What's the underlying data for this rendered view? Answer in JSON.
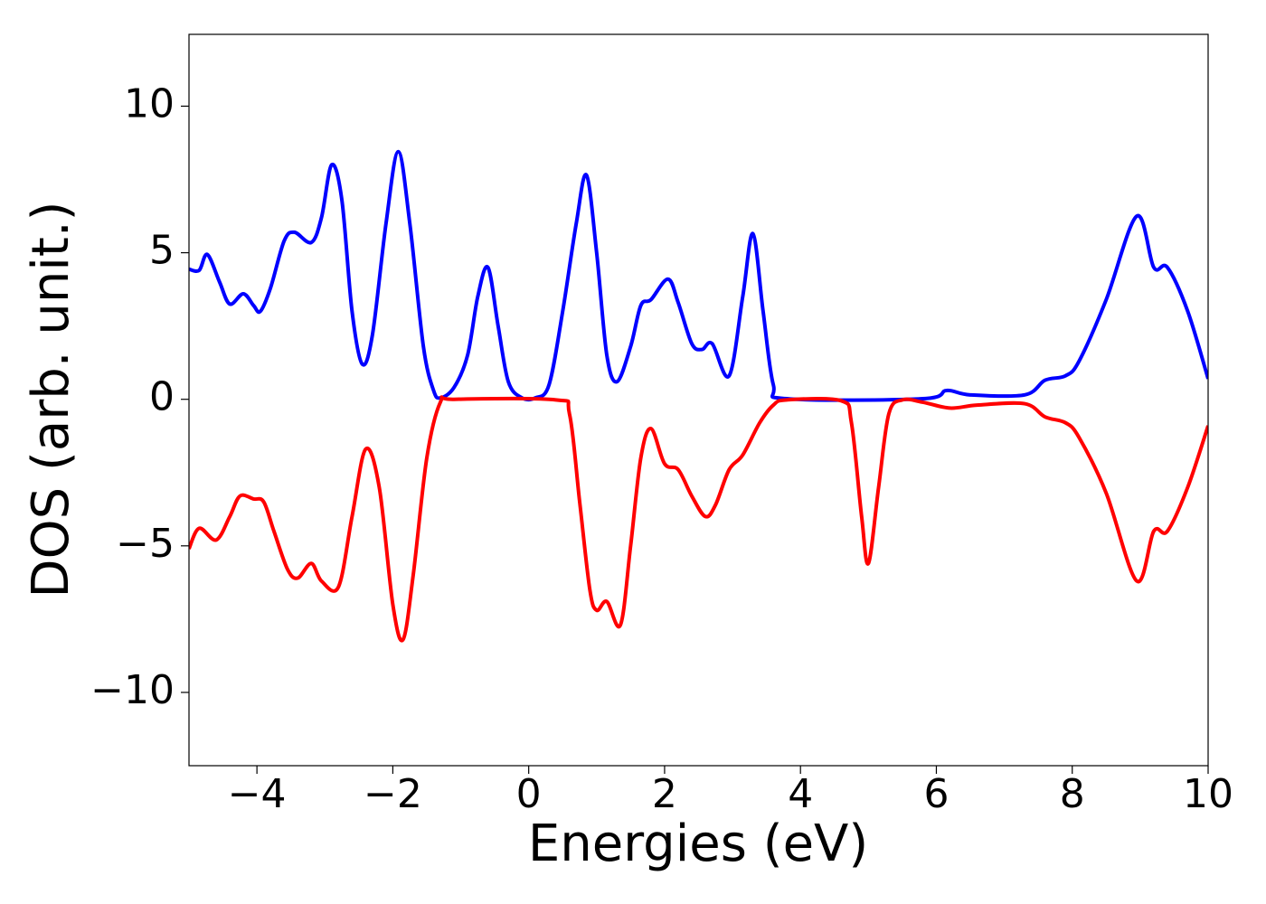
{
  "chart_data": {
    "type": "line",
    "xlabel": "Energies (eV)",
    "ylabel": "DOS (arb. unit.)",
    "xlim": [
      -5,
      10
    ],
    "ylim": [
      -12.5,
      12.45
    ],
    "xticks": [
      {
        "value": -4,
        "label": "−4"
      },
      {
        "value": -2,
        "label": "−2"
      },
      0,
      2,
      4,
      6,
      8,
      10
    ],
    "yticks": [
      {
        "value": -10,
        "label": "−10"
      },
      {
        "value": -5,
        "label": "−5"
      },
      0,
      5,
      10
    ],
    "grid": false,
    "series": [
      {
        "color": "#0000ff",
        "x": [
          -5,
          -4.85,
          -4.73,
          -4.55,
          -4.4,
          -4.2,
          -4.05,
          -3.95,
          -3.8,
          -3.6,
          -3.45,
          -3.2,
          -3.05,
          -2.9,
          -2.75,
          -2.6,
          -2.45,
          -2.3,
          -2.1,
          -1.92,
          -1.75,
          -1.55,
          -1.4,
          -1.3,
          -1.1,
          -0.9,
          -0.75,
          -0.6,
          -0.45,
          -0.3,
          -0.1,
          0.1,
          0.3,
          0.5,
          0.7,
          0.85,
          1.0,
          1.15,
          1.3,
          1.5,
          1.65,
          1.8,
          2.05,
          2.2,
          2.4,
          2.55,
          2.7,
          2.95,
          3.15,
          3.3,
          3.45,
          3.6,
          3.8,
          5.8,
          6.15,
          6.5,
          7.3,
          7.6,
          7.9,
          8.1,
          8.5,
          8.95,
          9.2,
          9.4,
          9.7,
          10
        ],
        "values": [
          4.44,
          4.4,
          4.94,
          4.0,
          3.25,
          3.6,
          3.2,
          3.0,
          3.8,
          5.4,
          5.7,
          5.35,
          6.2,
          8.0,
          6.8,
          3.0,
          1.2,
          2.2,
          6.0,
          8.45,
          6.0,
          1.8,
          0.3,
          0.05,
          0.4,
          1.5,
          3.5,
          4.5,
          2.5,
          0.6,
          0.05,
          0.05,
          0.5,
          3.0,
          6.0,
          7.65,
          5.0,
          1.5,
          0.6,
          1.8,
          3.2,
          3.4,
          4.1,
          3.3,
          1.9,
          1.7,
          1.9,
          0.8,
          3.5,
          5.65,
          3.0,
          0.5,
          0.02,
          0.02,
          0.3,
          0.15,
          0.15,
          0.65,
          0.8,
          1.3,
          3.4,
          6.25,
          4.5,
          4.5,
          3.0,
          0.7
        ]
      },
      {
        "color": "#ff0000",
        "x": [
          -5,
          -4.85,
          -4.6,
          -4.4,
          -4.25,
          -4.05,
          -3.9,
          -3.75,
          -3.55,
          -3.4,
          -3.2,
          -3.05,
          -2.8,
          -2.6,
          -2.4,
          -2.2,
          -2.0,
          -1.85,
          -1.7,
          -1.5,
          -1.3,
          -1.1,
          0.4,
          0.6,
          0.75,
          0.9,
          1.0,
          1.15,
          1.35,
          1.5,
          1.65,
          1.8,
          2.0,
          2.2,
          2.4,
          2.6,
          2.75,
          2.95,
          3.15,
          3.4,
          3.6,
          3.8,
          4.6,
          4.75,
          4.9,
          5.0,
          5.15,
          5.3,
          5.5,
          5.8,
          6.2,
          6.6,
          7.3,
          7.6,
          7.9,
          8.1,
          8.5,
          8.95,
          9.2,
          9.4,
          9.7,
          10
        ],
        "values": [
          -5.1,
          -4.4,
          -4.8,
          -4.0,
          -3.3,
          -3.4,
          -3.5,
          -4.5,
          -5.8,
          -6.1,
          -5.6,
          -6.2,
          -6.4,
          -4.0,
          -1.7,
          -3.0,
          -7.0,
          -8.2,
          -6.0,
          -2.0,
          -0.1,
          0,
          -0.02,
          -0.5,
          -3.5,
          -6.5,
          -7.2,
          -6.9,
          -7.7,
          -5.0,
          -2.0,
          -1.0,
          -2.2,
          -2.4,
          -3.3,
          -4.0,
          -3.6,
          -2.4,
          -1.9,
          -0.8,
          -0.2,
          -0.02,
          -0.05,
          -0.8,
          -4.0,
          -5.6,
          -3.0,
          -0.5,
          -0.02,
          -0.1,
          -0.3,
          -0.2,
          -0.15,
          -0.6,
          -0.8,
          -1.3,
          -3.2,
          -6.2,
          -4.5,
          -4.5,
          -3.0,
          -0.9
        ]
      }
    ]
  }
}
